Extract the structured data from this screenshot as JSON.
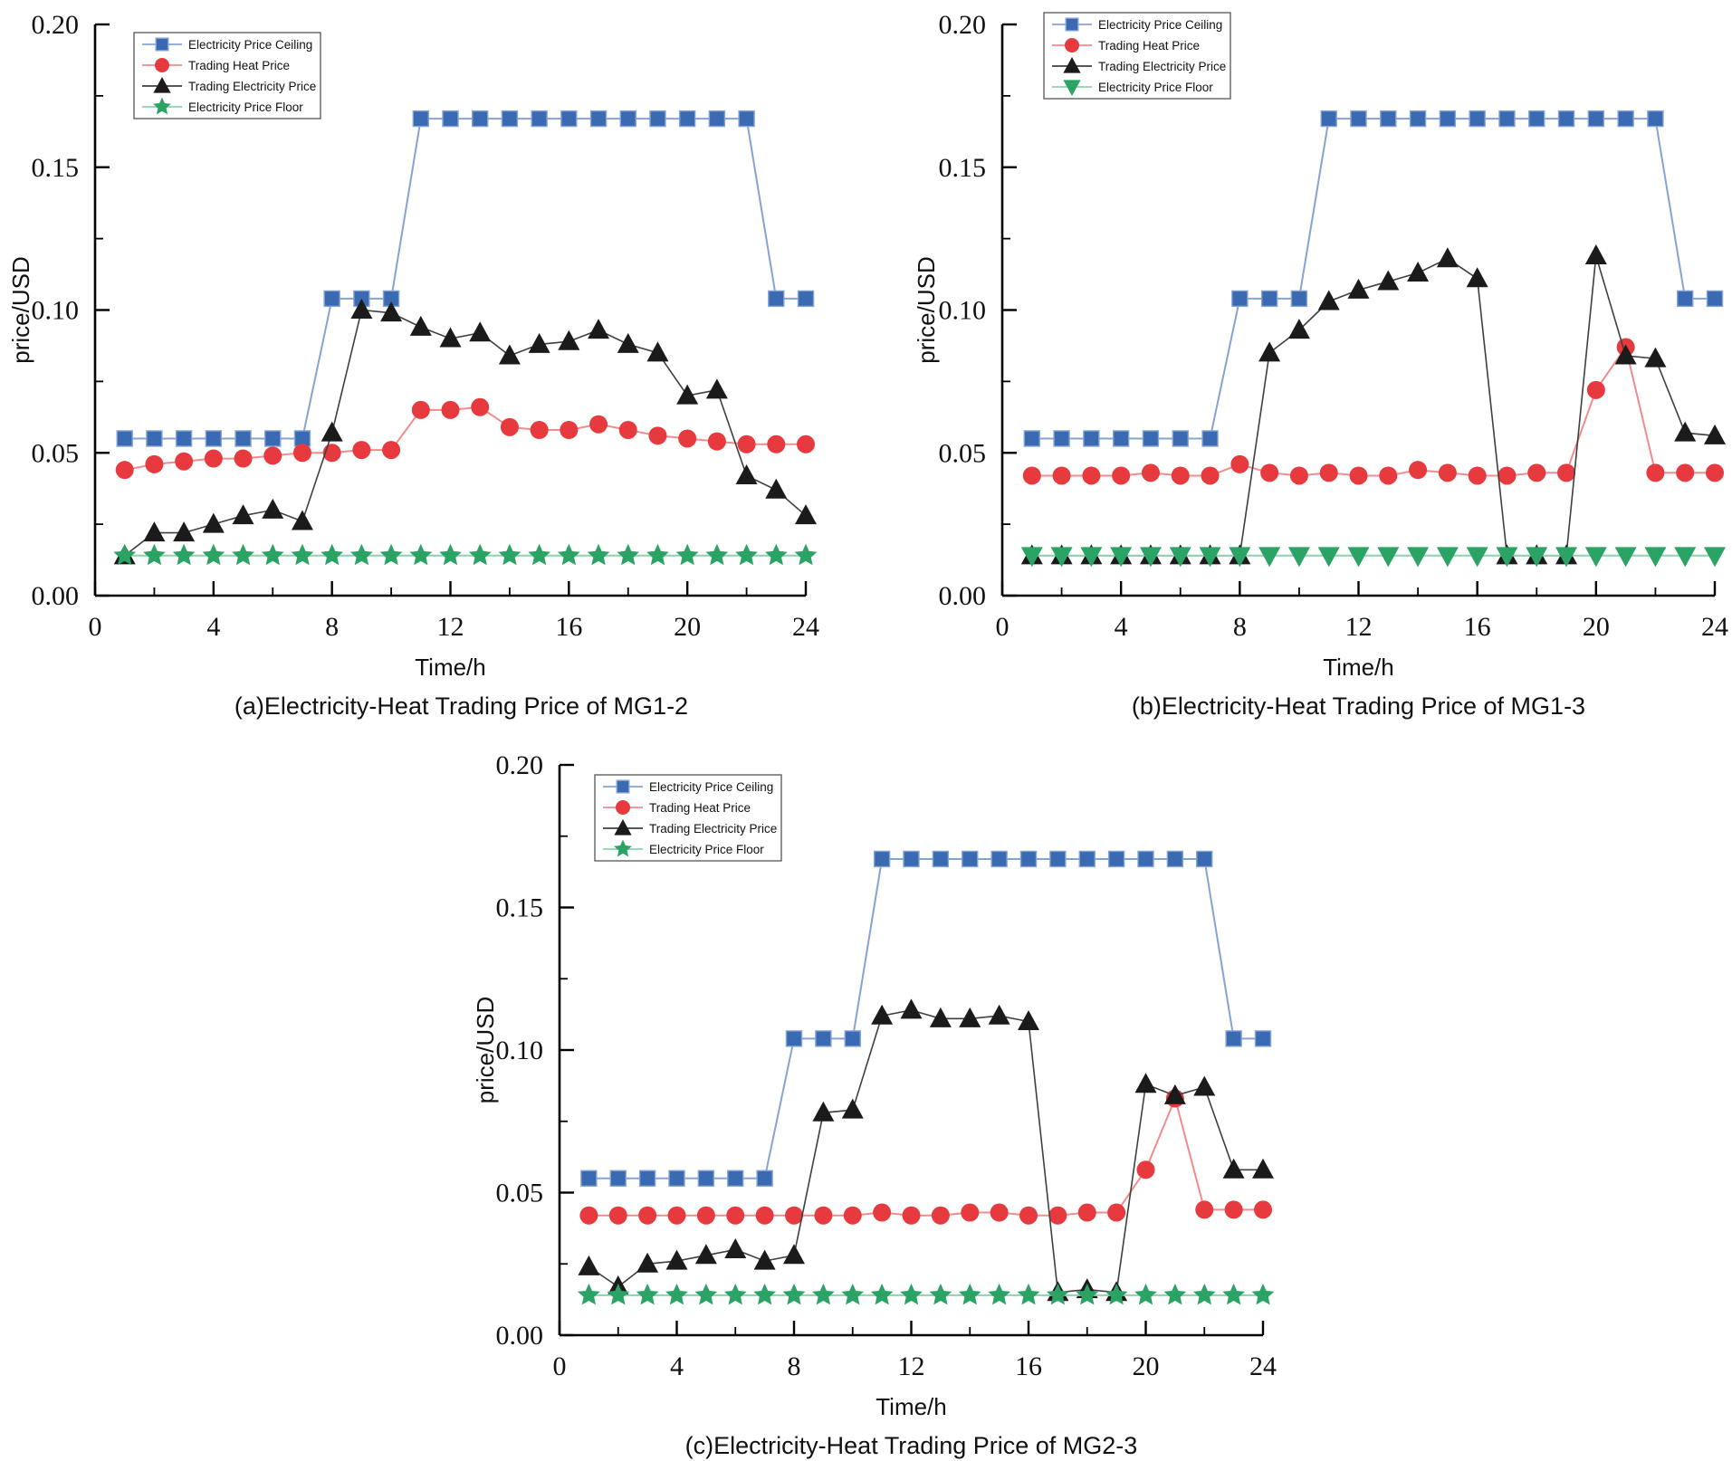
{
  "page": {
    "background": "#ffffff"
  },
  "chart_data": [
    {
      "id": "a",
      "type": "line",
      "title": "(a)Electricity-Heat Trading Price of MG1-2",
      "xlabel": "Time/h",
      "ylabel": "price/USD",
      "xlim": [
        0,
        24
      ],
      "ylim": [
        0.0,
        0.2
      ],
      "x_ticks": [
        0,
        4,
        8,
        12,
        16,
        20,
        24
      ],
      "x_tick_labels": [
        "0",
        "4",
        "8",
        "12",
        "16",
        "20",
        "24"
      ],
      "x_minor_ticks": [
        2,
        6,
        10,
        14,
        18,
        22
      ],
      "y_ticks": [
        0.0,
        0.05,
        0.1,
        0.15,
        0.2
      ],
      "y_tick_labels": [
        "0.00",
        "0.05",
        "0.10",
        "0.15",
        "0.20"
      ],
      "y_minor_ticks": [
        0.025,
        0.075,
        0.125,
        0.175
      ],
      "grid": false,
      "legend_position": "upper-left",
      "hours": [
        1,
        2,
        3,
        4,
        5,
        6,
        7,
        8,
        9,
        10,
        11,
        12,
        13,
        14,
        15,
        16,
        17,
        18,
        19,
        20,
        21,
        22,
        23,
        24
      ],
      "series": [
        {
          "name": "Electricity Price Ceiling",
          "marker": "square",
          "color": "#3a6ab1",
          "line_color": "#85a3d3",
          "values": [
            0.055,
            0.055,
            0.055,
            0.055,
            0.055,
            0.055,
            0.055,
            0.104,
            0.104,
            0.104,
            0.167,
            0.167,
            0.167,
            0.167,
            0.167,
            0.167,
            0.167,
            0.167,
            0.167,
            0.167,
            0.167,
            0.167,
            0.104,
            0.104
          ]
        },
        {
          "name": "Trading Heat Price",
          "marker": "circle",
          "color": "#e73a3f",
          "line_color": "#f08c8c",
          "values": [
            0.044,
            0.046,
            0.047,
            0.048,
            0.048,
            0.049,
            0.05,
            0.05,
            0.051,
            0.051,
            0.065,
            0.065,
            0.066,
            0.059,
            0.058,
            0.058,
            0.06,
            0.058,
            0.056,
            0.055,
            0.054,
            0.053,
            0.053,
            0.053
          ]
        },
        {
          "name": "Trading Electricity Price",
          "marker": "triangle-up",
          "color": "#1b1b1b",
          "line_color": "#3f3f3f",
          "values": [
            0.014,
            0.022,
            0.022,
            0.025,
            0.028,
            0.03,
            0.026,
            0.057,
            0.1,
            0.099,
            0.094,
            0.09,
            0.092,
            0.084,
            0.088,
            0.089,
            0.093,
            0.088,
            0.085,
            0.07,
            0.072,
            0.042,
            0.037,
            0.028
          ]
        },
        {
          "name": "Electricity Price Floor",
          "marker": "star",
          "color": "#2aa365",
          "line_color": "#8ed2ac",
          "values": [
            0.014,
            0.014,
            0.014,
            0.014,
            0.014,
            0.014,
            0.014,
            0.014,
            0.014,
            0.014,
            0.014,
            0.014,
            0.014,
            0.014,
            0.014,
            0.014,
            0.014,
            0.014,
            0.014,
            0.014,
            0.014,
            0.014,
            0.014,
            0.014
          ]
        }
      ]
    },
    {
      "id": "b",
      "type": "line",
      "title": "(b)Electricity-Heat Trading Price of MG1-3",
      "xlabel": "Time/h",
      "ylabel": "price/USD",
      "xlim": [
        0,
        24
      ],
      "ylim": [
        0.0,
        0.2
      ],
      "x_ticks": [
        0,
        4,
        8,
        12,
        16,
        20,
        24
      ],
      "x_tick_labels": [
        "0",
        "4",
        "8",
        "12",
        "16",
        "20",
        "24"
      ],
      "x_minor_ticks": [
        2,
        6,
        10,
        14,
        18,
        22
      ],
      "y_ticks": [
        0.0,
        0.05,
        0.1,
        0.15,
        0.2
      ],
      "y_tick_labels": [
        "0.00",
        "0.05",
        "0.10",
        "0.15",
        "0.20"
      ],
      "y_minor_ticks": [
        0.025,
        0.075,
        0.125,
        0.175
      ],
      "grid": false,
      "legend_position": "upper-left",
      "hours": [
        1,
        2,
        3,
        4,
        5,
        6,
        7,
        8,
        9,
        10,
        11,
        12,
        13,
        14,
        15,
        16,
        17,
        18,
        19,
        20,
        21,
        22,
        23,
        24
      ],
      "series": [
        {
          "name": "Electricity Price Ceiling",
          "marker": "square",
          "color": "#3a6ab1",
          "line_color": "#85a3d3",
          "values": [
            0.055,
            0.055,
            0.055,
            0.055,
            0.055,
            0.055,
            0.055,
            0.104,
            0.104,
            0.104,
            0.167,
            0.167,
            0.167,
            0.167,
            0.167,
            0.167,
            0.167,
            0.167,
            0.167,
            0.167,
            0.167,
            0.167,
            0.104,
            0.104
          ]
        },
        {
          "name": "Trading Heat Price",
          "marker": "circle",
          "color": "#e73a3f",
          "line_color": "#f08c8c",
          "values": [
            0.042,
            0.042,
            0.042,
            0.042,
            0.043,
            0.042,
            0.042,
            0.046,
            0.043,
            0.042,
            0.043,
            0.042,
            0.042,
            0.044,
            0.043,
            0.042,
            0.042,
            0.043,
            0.043,
            0.072,
            0.087,
            0.043,
            0.043,
            0.043
          ]
        },
        {
          "name": "Trading Electricity Price",
          "marker": "triangle-up",
          "color": "#1b1b1b",
          "line_color": "#3f3f3f",
          "values": [
            0.014,
            0.014,
            0.014,
            0.014,
            0.014,
            0.014,
            0.014,
            0.014,
            0.085,
            0.093,
            0.103,
            0.107,
            0.11,
            0.113,
            0.118,
            0.111,
            0.014,
            0.014,
            0.014,
            0.119,
            0.084,
            0.083,
            0.057,
            0.056
          ]
        },
        {
          "name": "Electricity Price Floor",
          "marker": "triangle-down",
          "color": "#2aa365",
          "line_color": "#8ed2ac",
          "values": [
            0.014,
            0.014,
            0.014,
            0.014,
            0.014,
            0.014,
            0.014,
            0.014,
            0.014,
            0.014,
            0.014,
            0.014,
            0.014,
            0.014,
            0.014,
            0.014,
            0.014,
            0.014,
            0.014,
            0.014,
            0.014,
            0.014,
            0.014,
            0.014
          ]
        }
      ]
    },
    {
      "id": "c",
      "type": "line",
      "title": "(c)Electricity-Heat Trading Price of MG2-3",
      "xlabel": "Time/h",
      "ylabel": "price/USD",
      "xlim": [
        0,
        24
      ],
      "ylim": [
        0.0,
        0.2
      ],
      "x_ticks": [
        0,
        4,
        8,
        12,
        16,
        20,
        24
      ],
      "x_tick_labels": [
        "0",
        "4",
        "8",
        "12",
        "16",
        "20",
        "24"
      ],
      "x_minor_ticks": [
        2,
        6,
        10,
        14,
        18,
        22
      ],
      "y_ticks": [
        0.0,
        0.05,
        0.1,
        0.15,
        0.2
      ],
      "y_tick_labels": [
        "0.00",
        "0.05",
        "0.10",
        "0.15",
        "0.20"
      ],
      "y_minor_ticks": [
        0.025,
        0.075,
        0.125,
        0.175
      ],
      "grid": false,
      "legend_position": "upper-left",
      "hours": [
        1,
        2,
        3,
        4,
        5,
        6,
        7,
        8,
        9,
        10,
        11,
        12,
        13,
        14,
        15,
        16,
        17,
        18,
        19,
        20,
        21,
        22,
        23,
        24
      ],
      "series": [
        {
          "name": "Electricity Price Ceiling",
          "marker": "square",
          "color": "#3a6ab1",
          "line_color": "#85a3d3",
          "values": [
            0.055,
            0.055,
            0.055,
            0.055,
            0.055,
            0.055,
            0.055,
            0.104,
            0.104,
            0.104,
            0.167,
            0.167,
            0.167,
            0.167,
            0.167,
            0.167,
            0.167,
            0.167,
            0.167,
            0.167,
            0.167,
            0.167,
            0.104,
            0.104
          ]
        },
        {
          "name": "Trading Heat Price",
          "marker": "circle",
          "color": "#e73a3f",
          "line_color": "#f08c8c",
          "values": [
            0.042,
            0.042,
            0.042,
            0.042,
            0.042,
            0.042,
            0.042,
            0.042,
            0.042,
            0.042,
            0.043,
            0.042,
            0.042,
            0.043,
            0.043,
            0.042,
            0.042,
            0.043,
            0.043,
            0.058,
            0.083,
            0.044,
            0.044,
            0.044
          ]
        },
        {
          "name": "Trading Electricity Price",
          "marker": "triangle-up",
          "color": "#1b1b1b",
          "line_color": "#3f3f3f",
          "values": [
            0.024,
            0.017,
            0.025,
            0.026,
            0.028,
            0.03,
            0.026,
            0.028,
            0.078,
            0.079,
            0.112,
            0.114,
            0.111,
            0.111,
            0.112,
            0.11,
            0.015,
            0.016,
            0.015,
            0.088,
            0.084,
            0.087,
            0.058,
            0.058
          ]
        },
        {
          "name": "Electricity Price Floor",
          "marker": "star",
          "color": "#2aa365",
          "line_color": "#8ed2ac",
          "values": [
            0.014,
            0.014,
            0.014,
            0.014,
            0.014,
            0.014,
            0.014,
            0.014,
            0.014,
            0.014,
            0.014,
            0.014,
            0.014,
            0.014,
            0.014,
            0.014,
            0.014,
            0.014,
            0.014,
            0.014,
            0.014,
            0.014,
            0.014,
            0.014
          ]
        }
      ]
    }
  ]
}
